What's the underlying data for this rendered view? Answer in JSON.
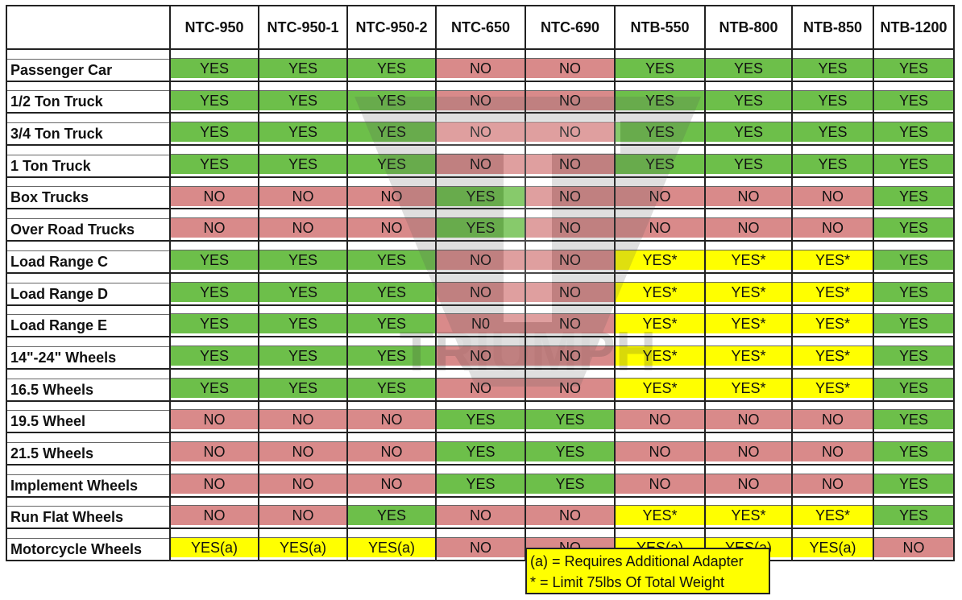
{
  "columns": [
    "NTC-950",
    "NTC-950-1",
    "NTC-950-2",
    "NTC-650",
    "NTC-690",
    "NTB-550",
    "NTB-800",
    "NTB-850",
    "NTB-1200"
  ],
  "rows": [
    {
      "label": "Passenger Car",
      "values": [
        "YES",
        "YES",
        "YES",
        "NO",
        "NO",
        "YES",
        "YES",
        "YES",
        "YES"
      ]
    },
    {
      "label": "1/2 Ton Truck",
      "values": [
        "YES",
        "YES",
        "YES",
        "NO",
        "NO",
        "YES",
        "YES",
        "YES",
        "YES"
      ]
    },
    {
      "label": "3/4 Ton Truck",
      "values": [
        "YES",
        "YES",
        "YES",
        "NO",
        "NO",
        "YES",
        "YES",
        "YES",
        "YES"
      ]
    },
    {
      "label": "1 Ton Truck",
      "values": [
        "YES",
        "YES",
        "YES",
        "NO",
        "NO",
        "YES",
        "YES",
        "YES",
        "YES"
      ]
    },
    {
      "label": "Box Trucks",
      "values": [
        "NO",
        "NO",
        "NO",
        "YES",
        "NO",
        "NO",
        "NO",
        "NO",
        "YES"
      ]
    },
    {
      "label": "Over Road Trucks",
      "values": [
        "NO",
        "NO",
        "NO",
        "YES",
        "NO",
        "NO",
        "NO",
        "NO",
        "YES"
      ]
    },
    {
      "label": "Load Range C",
      "values": [
        "YES",
        "YES",
        "YES",
        "NO",
        "NO",
        "YES*",
        "YES*",
        "YES*",
        "YES"
      ]
    },
    {
      "label": "Load Range D",
      "values": [
        "YES",
        "YES",
        "YES",
        "NO",
        "NO",
        "YES*",
        "YES*",
        "YES*",
        "YES"
      ]
    },
    {
      "label": "Load Range E",
      "values": [
        "YES",
        "YES",
        "YES",
        "N0",
        "NO",
        "YES*",
        "YES*",
        "YES*",
        "YES"
      ]
    },
    {
      "label": "14\"-24\" Wheels",
      "values": [
        "YES",
        "YES",
        "YES",
        "NO",
        "NO",
        "YES*",
        "YES*",
        "YES*",
        "YES"
      ]
    },
    {
      "label": "16.5 Wheels",
      "values": [
        "YES",
        "YES",
        "YES",
        "NO",
        "NO",
        "YES*",
        "YES*",
        "YES*",
        "YES"
      ]
    },
    {
      "label": "19.5 Wheel",
      "values": [
        "NO",
        "NO",
        "NO",
        "YES",
        "YES",
        "NO",
        "NO",
        "NO",
        "YES"
      ]
    },
    {
      "label": "21.5 Wheels",
      "values": [
        "NO",
        "NO",
        "NO",
        "YES",
        "YES",
        "NO",
        "NO",
        "NO",
        "YES"
      ]
    },
    {
      "label": "Implement Wheels",
      "values": [
        "NO",
        "NO",
        "NO",
        "YES",
        "YES",
        "NO",
        "NO",
        "NO",
        "YES"
      ]
    },
    {
      "label": "Run Flat Wheels",
      "values": [
        "NO",
        "NO",
        "YES",
        "NO",
        "NO",
        "YES*",
        "YES*",
        "YES*",
        "YES"
      ]
    },
    {
      "label": "Motorcycle Wheels",
      "values": [
        "YES(a)",
        "YES(a)",
        "YES(a)",
        "NO",
        "NO",
        "YES(a)",
        "YES(a)",
        "YES(a)",
        "NO"
      ]
    }
  ],
  "legend": {
    "line1": "(a) = Requires Additional Adapter",
    "line2": "* = Limit 75lbs Of Total Weight"
  },
  "watermark": {
    "text": "TRIUMPH"
  },
  "colors": {
    "yes": "#6dbf4a",
    "no": "#d98a8a",
    "conditional": "#ffff00"
  }
}
